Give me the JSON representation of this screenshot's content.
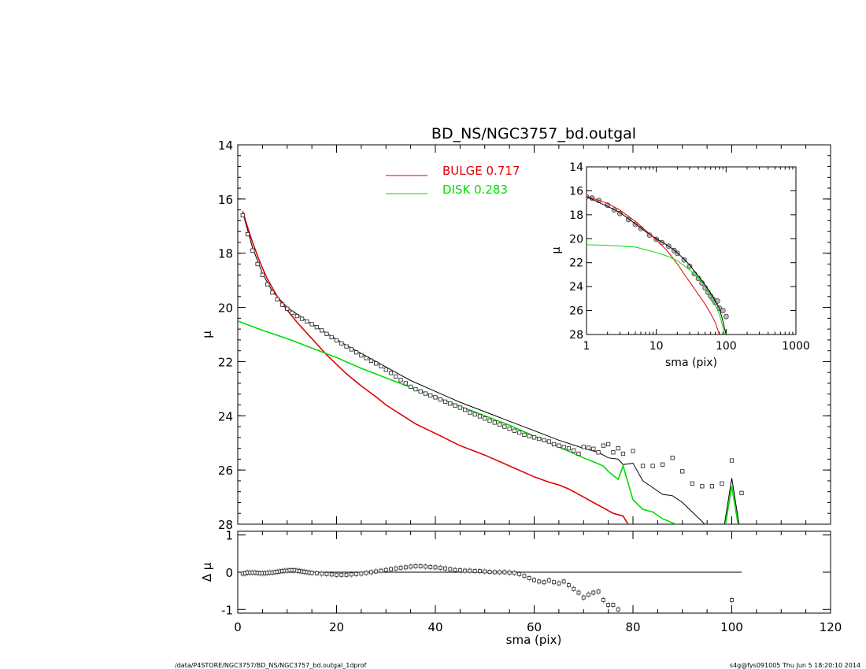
{
  "chart_data": [
    {
      "id": "main",
      "type": "line",
      "title": "BD_NS/NGC3757_bd.outgal",
      "xlabel": "",
      "ylabel": "μ",
      "xlim": [
        0,
        120
      ],
      "ylim": [
        28,
        14
      ],
      "yticks": [
        14,
        16,
        18,
        20,
        22,
        24,
        26,
        28
      ],
      "xticks": [
        0,
        20,
        40,
        60,
        80,
        100,
        120
      ],
      "legend": [
        {
          "label": "BULGE  0.717",
          "color": "#e00000"
        },
        {
          "label": "DISK  0.283",
          "color": "#00dd00"
        }
      ],
      "series": [
        {
          "name": "data",
          "style": "square-markers",
          "color": "#000000",
          "x": [
            1,
            2,
            3,
            4,
            5,
            6,
            7,
            8,
            9,
            10,
            11,
            12,
            13,
            14,
            15,
            16,
            17,
            18,
            19,
            20,
            21,
            22,
            23,
            24,
            25,
            26,
            27,
            28,
            29,
            30,
            31,
            32,
            33,
            34,
            35,
            36,
            37,
            38,
            39,
            40,
            41,
            42,
            43,
            44,
            45,
            46,
            47,
            48,
            49,
            50,
            51,
            52,
            53,
            54,
            55,
            56,
            57,
            58,
            59,
            60,
            61,
            62,
            63,
            64,
            65,
            66,
            67,
            68,
            69,
            70,
            71,
            72,
            73,
            74,
            75,
            76,
            77,
            78,
            80,
            82,
            84,
            86,
            88,
            90,
            92,
            94,
            96,
            98,
            100,
            102
          ],
          "y": [
            16.6,
            17.3,
            17.9,
            18.4,
            18.8,
            19.15,
            19.45,
            19.7,
            19.9,
            20.05,
            20.2,
            20.32,
            20.42,
            20.52,
            20.62,
            20.73,
            20.85,
            20.98,
            21.1,
            21.22,
            21.33,
            21.44,
            21.55,
            21.66,
            21.77,
            21.87,
            21.97,
            22.07,
            22.17,
            22.3,
            22.42,
            22.55,
            22.68,
            22.8,
            22.93,
            23.02,
            23.1,
            23.18,
            23.25,
            23.32,
            23.4,
            23.48,
            23.55,
            23.62,
            23.7,
            23.78,
            23.88,
            23.95,
            24.02,
            24.1,
            24.18,
            24.25,
            24.32,
            24.4,
            24.48,
            24.55,
            24.62,
            24.7,
            24.75,
            24.8,
            24.85,
            24.9,
            24.95,
            25.05,
            25.1,
            25.15,
            25.2,
            25.28,
            25.4,
            25.15,
            25.18,
            25.22,
            25.35,
            25.1,
            25.05,
            25.35,
            25.2,
            25.4,
            25.3,
            25.85,
            25.85,
            25.8,
            25.55,
            26.05,
            26.5,
            26.6,
            26.6,
            26.5,
            25.65,
            26.85
          ]
        },
        {
          "name": "model",
          "style": "line",
          "color": "#000000",
          "x": [
            1,
            3,
            5,
            7,
            10,
            14,
            18,
            22,
            26,
            30,
            35,
            40,
            45,
            50,
            55,
            60,
            65,
            70,
            73,
            75,
            77,
            78,
            80,
            82,
            84,
            86,
            88,
            90,
            92,
            94,
            96,
            98,
            100,
            102
          ],
          "y": [
            16.5,
            17.8,
            18.75,
            19.4,
            20.0,
            20.5,
            20.95,
            21.4,
            21.8,
            22.2,
            22.7,
            23.1,
            23.5,
            23.85,
            24.2,
            24.55,
            24.9,
            25.2,
            25.35,
            25.55,
            25.6,
            25.8,
            25.75,
            26.4,
            26.65,
            26.9,
            26.95,
            27.2,
            27.55,
            27.9,
            28.3,
            28.6,
            26.3,
            28.6
          ]
        },
        {
          "name": "bulge",
          "style": "line",
          "color": "#e00000",
          "x": [
            1,
            2,
            3,
            4,
            5,
            6,
            8,
            10,
            12,
            14,
            16,
            18,
            20,
            22,
            25,
            28,
            30,
            33,
            36,
            40,
            45,
            50,
            55,
            60,
            63,
            65,
            67,
            70,
            72,
            74,
            76,
            78,
            80
          ],
          "y": [
            16.45,
            17.05,
            17.6,
            18.1,
            18.55,
            18.95,
            19.6,
            20.1,
            20.55,
            20.95,
            21.35,
            21.75,
            22.1,
            22.45,
            22.9,
            23.3,
            23.6,
            23.95,
            24.3,
            24.65,
            25.1,
            25.45,
            25.85,
            26.25,
            26.45,
            26.55,
            26.7,
            27.0,
            27.2,
            27.4,
            27.6,
            27.7,
            28.3
          ]
        },
        {
          "name": "disk",
          "style": "line",
          "color": "#00dd00",
          "x": [
            0,
            5,
            10,
            15,
            20,
            25,
            30,
            35,
            40,
            45,
            50,
            55,
            60,
            65,
            70,
            72,
            74,
            75,
            77,
            78,
            80,
            82,
            84,
            86,
            88,
            90,
            92,
            94,
            96,
            98,
            100,
            102
          ],
          "y": [
            20.5,
            20.85,
            21.15,
            21.5,
            21.85,
            22.25,
            22.6,
            22.95,
            23.3,
            23.65,
            24.0,
            24.35,
            24.75,
            25.15,
            25.55,
            25.7,
            25.85,
            26.05,
            26.35,
            25.85,
            27.1,
            27.45,
            27.55,
            27.8,
            27.95,
            28.1,
            28.35,
            28.5,
            28.65,
            28.8,
            26.6,
            28.8
          ]
        }
      ]
    },
    {
      "id": "inset",
      "type": "line",
      "xscale": "log",
      "xlabel": "sma (pix)",
      "ylabel": "μ",
      "xlim": [
        1,
        1000
      ],
      "ylim": [
        28,
        14
      ],
      "yticks": [
        14,
        16,
        18,
        20,
        22,
        24,
        26,
        28
      ],
      "xticks": [
        1,
        10,
        100,
        1000
      ],
      "xticklabels": [
        "1",
        "10",
        "100",
        "1000"
      ],
      "series": [
        {
          "name": "data",
          "style": "circle-markers",
          "color": "#555555",
          "x": [
            1,
            1.2,
            1.5,
            2,
            2.5,
            3,
            4,
            5,
            6,
            8,
            10,
            12,
            15,
            18,
            20,
            25,
            30,
            35,
            40,
            45,
            50,
            55,
            60,
            65,
            70,
            75,
            80,
            90,
            100
          ],
          "y": [
            16.5,
            16.6,
            16.8,
            17.2,
            17.6,
            17.9,
            18.4,
            18.8,
            19.15,
            19.7,
            20.05,
            20.32,
            20.62,
            20.98,
            21.22,
            21.77,
            22.3,
            22.93,
            23.32,
            23.7,
            24.1,
            24.48,
            24.8,
            25.05,
            25.35,
            25.2,
            25.8,
            26.0,
            26.5
          ]
        },
        {
          "name": "model",
          "style": "line",
          "color": "#000000",
          "x": [
            1,
            2,
            3,
            5,
            7,
            10,
            14,
            18,
            22,
            26,
            30,
            35,
            40,
            50,
            60,
            70,
            80,
            90,
            95,
            100
          ],
          "y": [
            16.5,
            17.3,
            17.8,
            18.75,
            19.4,
            20.0,
            20.5,
            20.95,
            21.4,
            21.8,
            22.2,
            22.7,
            23.1,
            23.85,
            24.55,
            25.2,
            25.8,
            26.9,
            27.5,
            28.0
          ]
        },
        {
          "name": "bulge",
          "style": "line",
          "color": "#e00000",
          "x": [
            1,
            2,
            3,
            5,
            7,
            10,
            14,
            18,
            22,
            26,
            30,
            40,
            50,
            60,
            70,
            80
          ],
          "y": [
            16.45,
            17.05,
            17.6,
            18.55,
            19.3,
            20.1,
            20.95,
            21.75,
            22.45,
            23.1,
            23.6,
            24.65,
            25.45,
            26.25,
            27.0,
            28.0
          ]
        },
        {
          "name": "disk",
          "style": "line",
          "color": "#00dd00",
          "x": [
            1,
            2,
            5,
            10,
            15,
            20,
            25,
            30,
            40,
            50,
            60,
            70,
            80,
            90,
            95
          ],
          "y": [
            20.5,
            20.55,
            20.7,
            21.15,
            21.5,
            21.85,
            22.25,
            22.6,
            23.3,
            24.0,
            24.75,
            25.55,
            26.3,
            27.4,
            28.0
          ]
        }
      ]
    },
    {
      "id": "residual",
      "type": "scatter",
      "xlabel": "sma (pix)",
      "ylabel": "Δ μ",
      "xlim": [
        0,
        120
      ],
      "ylim": [
        -1.1,
        1.1
      ],
      "yticks": [
        -1,
        0,
        1
      ],
      "yticklabels": [
        "-1",
        "0",
        "1"
      ],
      "xticks": [
        0,
        20,
        40,
        60,
        80,
        100,
        120
      ],
      "zero_line_xrange": [
        0,
        102
      ],
      "series": [
        {
          "name": "residual",
          "style": "square-markers",
          "color": "#000000",
          "x": [
            1,
            1.5,
            2,
            2.5,
            3,
            3.5,
            4,
            4.5,
            5,
            5.5,
            6,
            6.5,
            7,
            7.5,
            8,
            8.5,
            9,
            9.5,
            10,
            10.5,
            11,
            11.5,
            12,
            12.5,
            13,
            13.5,
            14,
            14.5,
            15,
            16,
            17,
            18,
            19,
            20,
            21,
            22,
            23,
            24,
            25,
            26,
            27,
            28,
            29,
            30,
            31,
            32,
            33,
            34,
            35,
            36,
            37,
            38,
            39,
            40,
            41,
            42,
            43,
            44,
            45,
            46,
            47,
            48,
            49,
            50,
            51,
            52,
            53,
            54,
            55,
            56,
            57,
            58,
            59,
            60,
            61,
            62,
            63,
            64,
            65,
            66,
            67,
            68,
            69,
            70,
            71,
            72,
            73,
            74,
            75,
            76,
            77,
            100
          ],
          "y": [
            -0.04,
            -0.03,
            -0.01,
            -0.01,
            -0.01,
            -0.01,
            -0.02,
            -0.03,
            -0.03,
            -0.03,
            -0.02,
            -0.01,
            -0.01,
            0,
            0.01,
            0.02,
            0.03,
            0.04,
            0.04,
            0.05,
            0.05,
            0.05,
            0.04,
            0.03,
            0.02,
            0.01,
            0,
            -0.01,
            -0.02,
            -0.03,
            -0.04,
            -0.05,
            -0.06,
            -0.07,
            -0.07,
            -0.07,
            -0.06,
            -0.05,
            -0.04,
            -0.02,
            0,
            0.02,
            0.04,
            0.06,
            0.08,
            0.1,
            0.12,
            0.13,
            0.15,
            0.16,
            0.16,
            0.15,
            0.14,
            0.13,
            0.12,
            0.1,
            0.08,
            0.06,
            0.05,
            0.04,
            0.04,
            0.03,
            0.03,
            0.02,
            0.01,
            0,
            0,
            0,
            -0.01,
            -0.02,
            -0.05,
            -0.1,
            -0.16,
            -0.21,
            -0.25,
            -0.27,
            -0.22,
            -0.27,
            -0.3,
            -0.25,
            -0.35,
            -0.45,
            -0.55,
            -0.68,
            -0.6,
            -0.55,
            -0.52,
            -0.75,
            -0.88,
            -0.88,
            -1.0,
            -0.75
          ]
        }
      ]
    }
  ],
  "footer": {
    "left": "/data/P4STORE/NGC3757/BD_NS/NGC3757_bd.outgal_1dprof",
    "right": "s4g@fys091005  Thu Jun  5 18:20:10 2014"
  }
}
